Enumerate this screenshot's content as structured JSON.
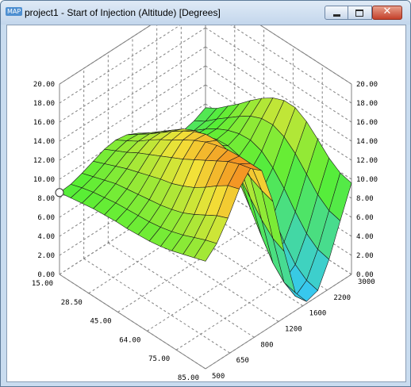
{
  "window": {
    "app_icon": "MAP",
    "title": "project1 - Start of Injection (Altitude) [Degrees]",
    "icons": {
      "minimize": "minimize-icon",
      "maximize": "maximize-icon",
      "close": "close-icon"
    },
    "close_glyph": "✕"
  },
  "colors": {
    "client_bg": "#ffffff",
    "grid": "#808080",
    "mesh_line": "#1a1a1a",
    "low": "#35c6f7",
    "mid": "#57ee35",
    "high": "#f47f1d",
    "marker": "#ffffff"
  },
  "chart_data": {
    "type": "surface",
    "z_ticks": [
      "20.00",
      "18.00",
      "16.00",
      "14.00",
      "12.00",
      "10.00",
      "8.00",
      "6.00",
      "4.00",
      "2.00",
      "0.00"
    ],
    "z_range": [
      0,
      20
    ],
    "load_ticks": [
      "15.00",
      "28.50",
      "45.00",
      "64.00",
      "75.00",
      "85.00"
    ],
    "rpm_ticks": [
      "500",
      "650",
      "800",
      "1200",
      "1600",
      "2200",
      "3000"
    ],
    "grid": true,
    "selected_cell": "load 15.00 / rpm 500",
    "z_values": [
      [
        7.6,
        7.0,
        6.7,
        6.8,
        7.6,
        8.6,
        9.5,
        10.1,
        10.3,
        10.1,
        9.6,
        9.1,
        8.7,
        8.6
      ],
      [
        8.3,
        7.7,
        7.5,
        7.6,
        8.4,
        9.4,
        10.3,
        10.9,
        11.0,
        10.7,
        10.1,
        9.5,
        9.1,
        8.8
      ],
      [
        9.3,
        8.7,
        8.4,
        8.5,
        9.3,
        10.3,
        11.2,
        11.7,
        11.7,
        11.3,
        10.6,
        9.9,
        9.4,
        9.0
      ],
      [
        10.3,
        9.6,
        9.2,
        9.2,
        10.1,
        11.2,
        12.1,
        12.6,
        12.6,
        12.0,
        11.1,
        10.3,
        9.6,
        9.2
      ],
      [
        11.4,
        10.5,
        9.8,
        9.6,
        10.5,
        11.8,
        13.0,
        13.5,
        13.4,
        12.6,
        11.5,
        10.5,
        9.8,
        9.3
      ],
      [
        12.4,
        11.3,
        10.2,
        9.7,
        10.5,
        12.1,
        13.6,
        14.3,
        14.1,
        13.2,
        11.9,
        10.7,
        9.9,
        9.4
      ],
      [
        13.2,
        11.8,
        10.3,
        9.4,
        10.0,
        11.9,
        13.9,
        15.0,
        14.9,
        13.8,
        12.3,
        10.9,
        10.0,
        9.4
      ],
      [
        13.7,
        11.9,
        9.9,
        8.6,
        8.9,
        11.1,
        13.8,
        15.5,
        15.6,
        14.4,
        12.6,
        11.1,
        10.1,
        9.5
      ],
      [
        13.7,
        11.4,
        8.9,
        7.2,
        7.2,
        9.7,
        13.1,
        15.6,
        16.2,
        15.1,
        13.1,
        11.4,
        10.3,
        9.6
      ],
      [
        13.0,
        10.4,
        7.5,
        5.4,
        5.0,
        7.7,
        11.9,
        15.3,
        16.6,
        15.8,
        13.7,
        11.8,
        10.6,
        9.8
      ],
      [
        11.9,
        9.0,
        5.8,
        3.4,
        2.8,
        5.5,
        10.3,
        14.7,
        16.9,
        16.5,
        14.5,
        12.4,
        11.0,
        10.1
      ],
      [
        10.7,
        7.6,
        4.3,
        1.8,
        0.9,
        3.5,
        8.8,
        14.0,
        17.0,
        17.2,
        15.4,
        13.1,
        11.5,
        10.5
      ],
      [
        9.9,
        6.7,
        3.4,
        0.9,
        0.0,
        2.2,
        7.6,
        13.4,
        17.0,
        17.7,
        16.2,
        13.8,
        12.0,
        10.9
      ],
      [
        9.6,
        6.4,
        3.1,
        0.6,
        0.2,
        1.9,
        7.0,
        13.0,
        17.0,
        18.0,
        16.6,
        14.3,
        12.4,
        11.3
      ]
    ]
  }
}
